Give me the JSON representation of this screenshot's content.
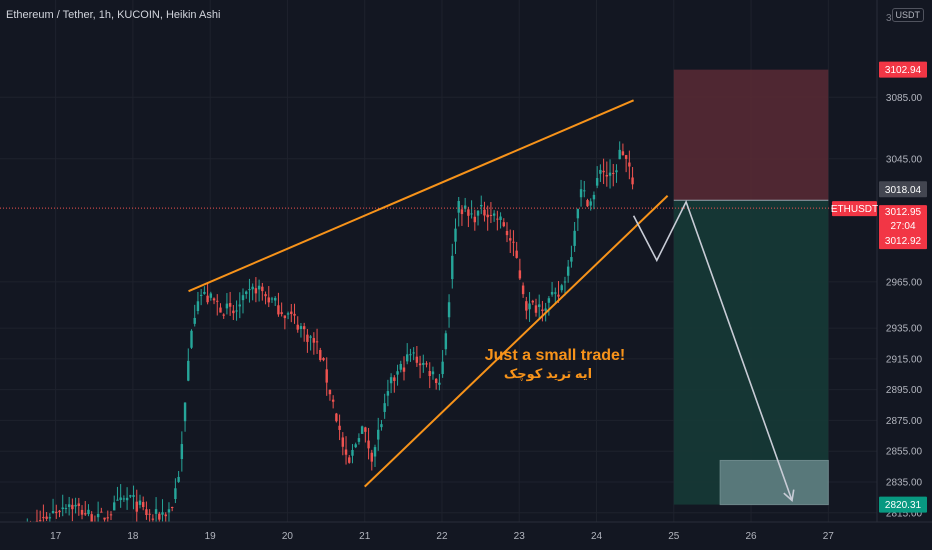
{
  "header": {
    "title": "Ethereum / Tether, 1h, KUCOIN, Heikin Ashi",
    "currency": "USDT",
    "top_digit": "3"
  },
  "colors": {
    "background": "#131722",
    "grid": "#1e222d",
    "up": "#26a69a",
    "down": "#ef5350",
    "trendline": "#f7931a",
    "arrow": "#c8ccd6",
    "stop_zone": "#5a2a35",
    "target_zone": "#163a36",
    "price_line": "#d1d4dc",
    "last_price": "#ef5350"
  },
  "annotation": {
    "line1": "Just a small trade!",
    "line2": "ایه ترید کوچک"
  },
  "chart_data": {
    "type": "candlestick",
    "symbol": "ETHUSDT",
    "timeframe": "1h",
    "x_ticks": [
      "17",
      "18",
      "19",
      "20",
      "21",
      "22",
      "23",
      "24",
      "25",
      "26",
      "27"
    ],
    "y_ticks": [
      3085.0,
      3045.0,
      2965.0,
      2935.0,
      2915.0,
      2895.0,
      2875.0,
      2855.0,
      2835.0,
      2815.0
    ],
    "ylim": [
      2809,
      3130
    ],
    "xlim": [
      16.28,
      27.63
    ],
    "price_labels": {
      "stop": "3102.94",
      "entry": "3018.04",
      "ticker": "ETHUSDT",
      "last": "3012.95",
      "countdown": "27:04",
      "bid": "3012.92",
      "target": "2820.31"
    },
    "levels": {
      "stop": 3102.94,
      "entry": 3018.04,
      "last": 3012.95,
      "target": 2820.31
    },
    "zones": {
      "x_start": 25.0,
      "x_end": 27.0,
      "box_x_start": 25.6,
      "box_top": 2849,
      "box_bottom": 2820.31
    },
    "trendlines": [
      {
        "from": [
          18.72,
          2959
        ],
        "to": [
          24.48,
          3083
        ]
      },
      {
        "from": [
          21.0,
          2832
        ],
        "to": [
          24.92,
          3021
        ]
      }
    ],
    "projection": [
      [
        24.48,
        3008
      ],
      [
        24.78,
        2979
      ],
      [
        25.16,
        3017
      ],
      [
        26.53,
        2823
      ]
    ],
    "anchors": [
      [
        16.55,
        2801
      ],
      [
        17.15,
        2822
      ],
      [
        17.55,
        2810
      ],
      [
        17.95,
        2825
      ],
      [
        18.25,
        2811
      ],
      [
        18.5,
        2818
      ],
      [
        18.62,
        2848
      ],
      [
        18.75,
        2935
      ],
      [
        18.85,
        2958
      ],
      [
        19.05,
        2952
      ],
      [
        19.3,
        2944
      ],
      [
        19.6,
        2962
      ],
      [
        19.85,
        2950
      ],
      [
        20.1,
        2940
      ],
      [
        20.4,
        2922
      ],
      [
        20.6,
        2885
      ],
      [
        20.78,
        2843
      ],
      [
        20.95,
        2872
      ],
      [
        21.1,
        2852
      ],
      [
        21.35,
        2900
      ],
      [
        21.6,
        2918
      ],
      [
        21.8,
        2910
      ],
      [
        21.98,
        2900
      ],
      [
        22.08,
        2948
      ],
      [
        22.2,
        3018
      ],
      [
        22.35,
        3007
      ],
      [
        22.6,
        3012
      ],
      [
        22.8,
        3002
      ],
      [
        22.95,
        2983
      ],
      [
        23.1,
        2948
      ],
      [
        23.25,
        2950
      ],
      [
        23.5,
        2955
      ],
      [
        23.65,
        2977
      ],
      [
        23.78,
        3024
      ],
      [
        23.95,
        3016
      ],
      [
        24.05,
        3040
      ],
      [
        24.2,
        3030
      ],
      [
        24.32,
        3052
      ],
      [
        24.42,
        3040
      ],
      [
        24.5,
        3013
      ]
    ],
    "note": "Heikin Ashi hourly candles from Nov 17 to Nov 24; short setup with entry 3018.04, stop 3102.94, target 2820.31"
  }
}
